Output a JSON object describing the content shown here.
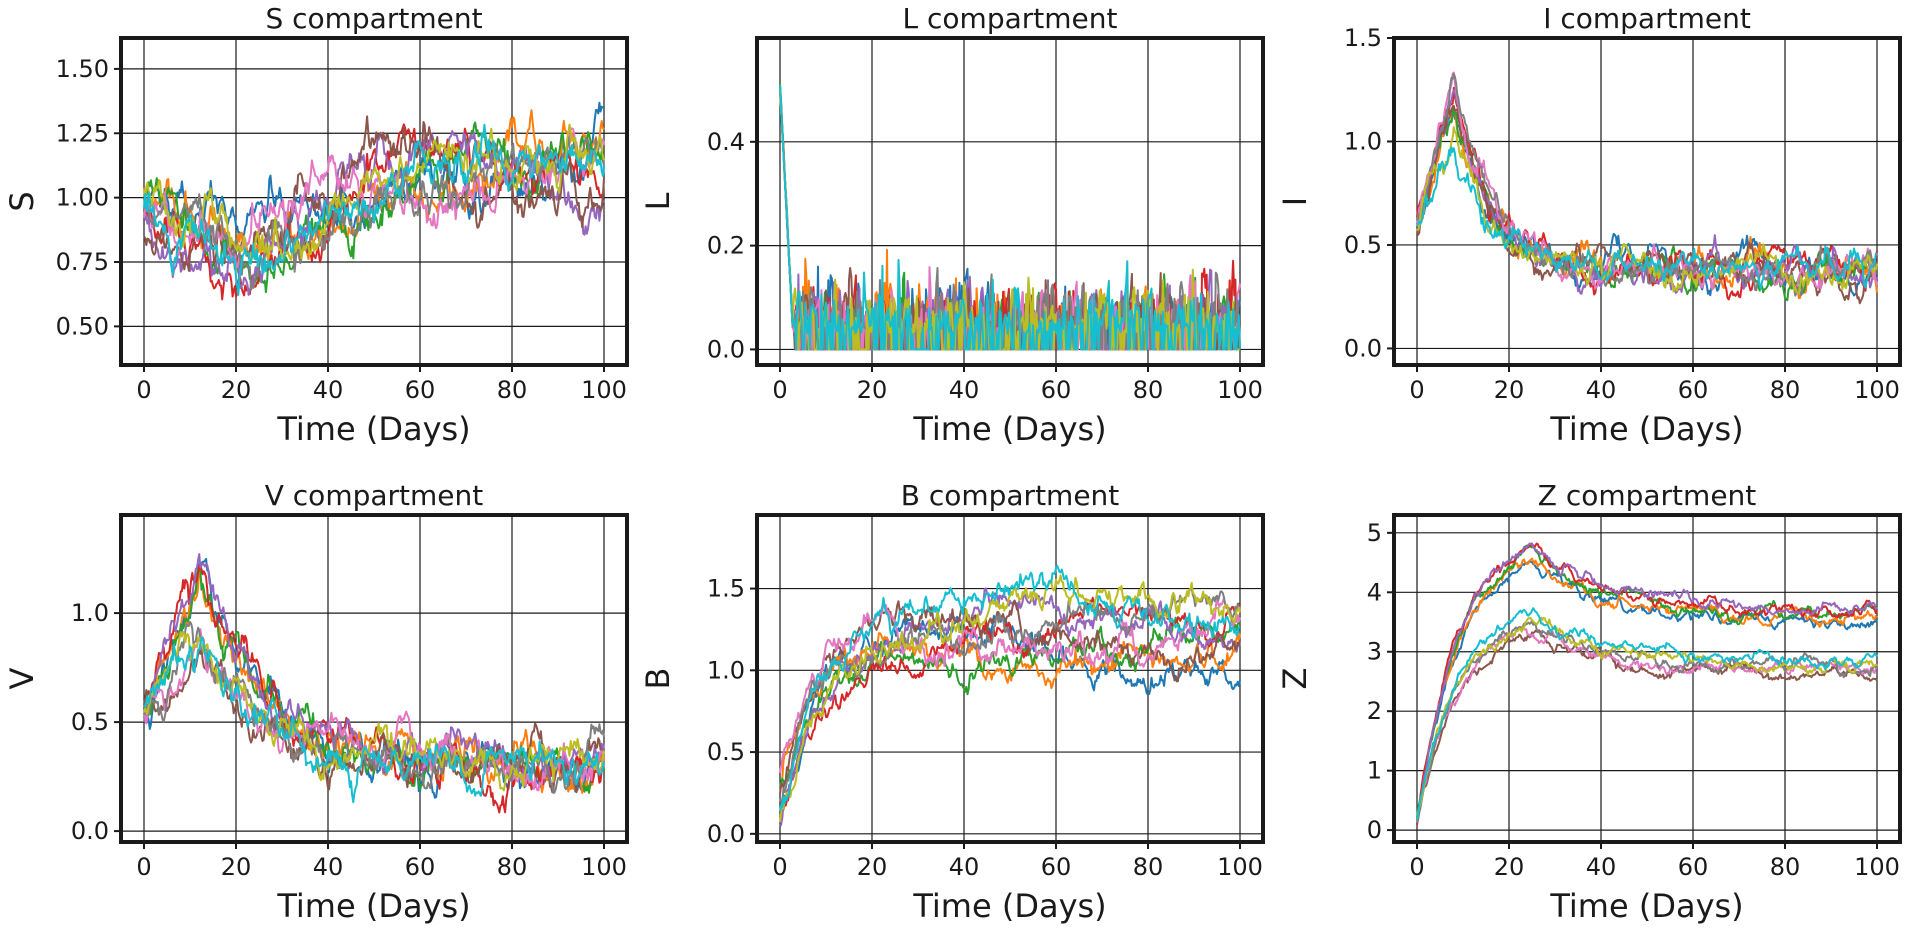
{
  "chart_data": [
    {
      "type": "line",
      "title": "S compartment",
      "xlabel": "Time (Days)",
      "ylabel": "S",
      "xlim": [
        -5,
        105
      ],
      "ylim": [
        0.35,
        1.62
      ],
      "xticks": [
        0,
        20,
        40,
        60,
        80,
        100
      ],
      "xtick_labels": [
        "0",
        "20",
        "40",
        "60",
        "80",
        "100"
      ],
      "yticks": [
        0.5,
        0.75,
        1.0,
        1.25,
        1.5
      ],
      "ytick_labels": [
        "0.50",
        "0.75",
        "1.00",
        "1.25",
        "1.50"
      ],
      "grid": true,
      "trajectory": {
        "days": 100,
        "n_series": 10,
        "profile": "s",
        "start": 0.95,
        "noise": 0.06,
        "seed": 11
      }
    },
    {
      "type": "line",
      "title": "L compartment",
      "xlabel": "Time (Days)",
      "ylabel": "L",
      "xlim": [
        -5,
        105
      ],
      "ylim": [
        -0.03,
        0.6
      ],
      "xticks": [
        0,
        20,
        40,
        60,
        80,
        100
      ],
      "xtick_labels": [
        "0",
        "20",
        "40",
        "60",
        "80",
        "100"
      ],
      "yticks": [
        0.0,
        0.2,
        0.4
      ],
      "ytick_labels": [
        "0.0",
        "0.2",
        "0.4"
      ],
      "grid": true,
      "trajectory": {
        "days": 100,
        "n_series": 10,
        "profile": "l",
        "start": 0.5,
        "noise": 0.05,
        "seed": 23
      }
    },
    {
      "type": "line",
      "title": "I compartment",
      "xlabel": "Time (Days)",
      "ylabel": "I",
      "xlim": [
        -5,
        105
      ],
      "ylim": [
        -0.08,
        1.5
      ],
      "xticks": [
        0,
        20,
        40,
        60,
        80,
        100
      ],
      "xtick_labels": [
        "0",
        "20",
        "40",
        "60",
        "80",
        "100"
      ],
      "yticks": [
        0.0,
        0.5,
        1.0,
        1.5
      ],
      "ytick_labels": [
        "0.0",
        "0.5",
        "1.0",
        "1.5"
      ],
      "grid": true,
      "trajectory": {
        "days": 100,
        "n_series": 10,
        "profile": "i",
        "start": 0.6,
        "noise": 0.05,
        "seed": 37
      }
    },
    {
      "type": "line",
      "title": "V compartment",
      "xlabel": "Time (Days)",
      "ylabel": "V",
      "xlim": [
        -5,
        105
      ],
      "ylim": [
        -0.05,
        1.45
      ],
      "xticks": [
        0,
        20,
        40,
        60,
        80,
        100
      ],
      "xtick_labels": [
        "0",
        "20",
        "40",
        "60",
        "80",
        "100"
      ],
      "yticks": [
        0.0,
        0.5,
        1.0
      ],
      "ytick_labels": [
        "0.0",
        "0.5",
        "1.0"
      ],
      "grid": true,
      "trajectory": {
        "days": 100,
        "n_series": 10,
        "profile": "v",
        "start": 0.55,
        "noise": 0.06,
        "seed": 41
      }
    },
    {
      "type": "line",
      "title": "B compartment",
      "xlabel": "Time (Days)",
      "ylabel": "B",
      "xlim": [
        -5,
        105
      ],
      "ylim": [
        -0.05,
        1.95
      ],
      "xticks": [
        0,
        20,
        40,
        60,
        80,
        100
      ],
      "xtick_labels": [
        "0",
        "20",
        "40",
        "60",
        "80",
        "100"
      ],
      "yticks": [
        0.0,
        0.5,
        1.0,
        1.5
      ],
      "ytick_labels": [
        "0.0",
        "0.5",
        "1.0",
        "1.5"
      ],
      "grid": true,
      "trajectory": {
        "days": 100,
        "n_series": 10,
        "profile": "b",
        "start": 0.2,
        "noise": 0.06,
        "seed": 53
      }
    },
    {
      "type": "line",
      "title": "Z compartment",
      "xlabel": "Time (Days)",
      "ylabel": "Z",
      "xlim": [
        -5,
        105
      ],
      "ylim": [
        -0.2,
        5.3
      ],
      "xticks": [
        0,
        20,
        40,
        60,
        80,
        100
      ],
      "xtick_labels": [
        "0",
        "20",
        "40",
        "60",
        "80",
        "100"
      ],
      "yticks": [
        0,
        1,
        2,
        3,
        4,
        5
      ],
      "ytick_labels": [
        "0",
        "1",
        "2",
        "3",
        "4",
        "5"
      ],
      "grid": true,
      "trajectory": {
        "days": 100,
        "n_series": 10,
        "profile": "z",
        "start": 0.15,
        "noise": 0.07,
        "seed": 67
      }
    }
  ],
  "palette": [
    "#1f77b4",
    "#ff7f0e",
    "#2ca02c",
    "#d62728",
    "#9467bd",
    "#8c564b",
    "#e377c2",
    "#7f7f7f",
    "#bcbd22",
    "#17becf"
  ]
}
